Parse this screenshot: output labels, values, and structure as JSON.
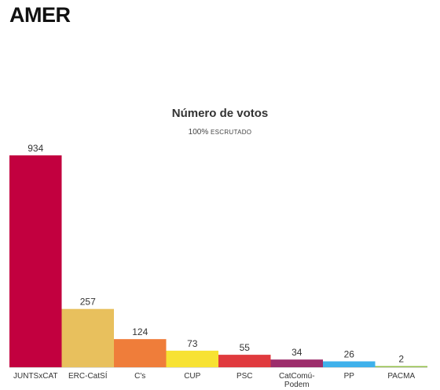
{
  "page": {
    "title": "AMER"
  },
  "chart_data": {
    "type": "bar",
    "title": "Número de votos",
    "subtitle_value": "100%",
    "subtitle_label": "ESCRUTADO",
    "categories": [
      "JUNTSxCAT",
      "ERC-CatSÍ",
      "C's",
      "CUP",
      "PSC",
      "CatComú-Podem",
      "PP",
      "PACMA"
    ],
    "category_lines": [
      [
        "JUNTSxCAT"
      ],
      [
        "ERC-CatSÍ"
      ],
      [
        "C's"
      ],
      [
        "CUP"
      ],
      [
        "PSC"
      ],
      [
        "CatComú-",
        "Podem"
      ],
      [
        "PP"
      ],
      [
        "PACMA"
      ]
    ],
    "values": [
      934,
      257,
      124,
      73,
      55,
      34,
      26,
      2
    ],
    "colors": [
      "#c2003f",
      "#e8c05d",
      "#ef7d3a",
      "#f7e233",
      "#e03a3e",
      "#9c2d6b",
      "#3fb1eb",
      "#93bf4a"
    ],
    "xlabel": "",
    "ylabel": "",
    "grid": false,
    "legend": "none"
  }
}
